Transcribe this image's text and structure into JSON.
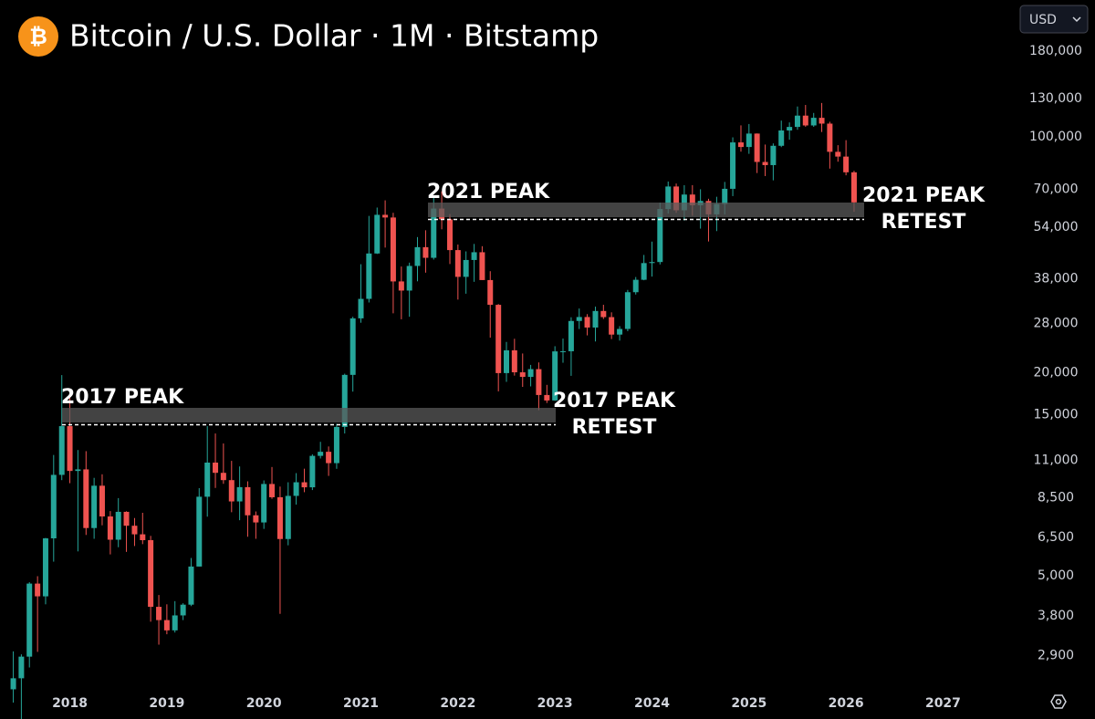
{
  "chart_data": {
    "type": "candlestick",
    "title": "Bitcoin / U.S. Dollar · 1M · Bitstamp",
    "icon": "₿",
    "currency": "USD",
    "log_scale": true,
    "up_color": "#26a69a",
    "down_color": "#ef5350",
    "annotations": [
      {
        "lines": [
          "2017 PEAK"
        ]
      },
      {
        "lines": [
          "2017 PEAK",
          "RETEST"
        ]
      },
      {
        "lines": [
          "2021 PEAK"
        ]
      },
      {
        "lines": [
          "2021 PEAK",
          "RETEST"
        ]
      }
    ],
    "xlim": [
      2017.28,
      2027.72
    ],
    "xticks": [
      2018,
      2019,
      2020,
      2021,
      2022,
      2023,
      2024,
      2025,
      2026,
      2027
    ],
    "ylim": [
      2350,
      255000
    ],
    "yticks": [
      {
        "value": 2900,
        "label": "2,900"
      },
      {
        "value": 3800,
        "label": "3,800"
      },
      {
        "value": 5000,
        "label": "5,000"
      },
      {
        "value": 6500,
        "label": "6,500"
      },
      {
        "value": 8500,
        "label": "8,500"
      },
      {
        "value": 11000,
        "label": "11,000"
      },
      {
        "value": 15000,
        "label": "15,000"
      },
      {
        "value": 20000,
        "label": "20,000"
      },
      {
        "value": 28000,
        "label": "28,000"
      },
      {
        "value": 38000,
        "label": "38,000"
      },
      {
        "value": 54000,
        "label": "54,000"
      },
      {
        "value": 70000,
        "label": "70,000"
      },
      {
        "value": 100000,
        "label": "100,000"
      },
      {
        "value": 130000,
        "label": "130,000"
      },
      {
        "value": 180000,
        "label": "180,000"
      }
    ],
    "x": [
      2017.417,
      2017.5,
      2017.583,
      2017.667,
      2017.75,
      2017.833,
      2017.917,
      2018,
      2018.083,
      2018.167,
      2018.25,
      2018.333,
      2018.417,
      2018.5,
      2018.583,
      2018.667,
      2018.75,
      2018.833,
      2018.917,
      2019,
      2019.083,
      2019.167,
      2019.25,
      2019.333,
      2019.417,
      2019.5,
      2019.583,
      2019.667,
      2019.75,
      2019.833,
      2019.917,
      2020,
      2020.083,
      2020.167,
      2020.25,
      2020.333,
      2020.417,
      2020.5,
      2020.583,
      2020.667,
      2020.75,
      2020.833,
      2020.917,
      2021,
      2021.083,
      2021.167,
      2021.25,
      2021.333,
      2021.417,
      2021.5,
      2021.583,
      2021.667,
      2021.75,
      2021.833,
      2021.917,
      2022,
      2022.083,
      2022.167,
      2022.25,
      2022.333,
      2022.417,
      2022.5,
      2022.583,
      2022.667,
      2022.75,
      2022.833,
      2022.917,
      2023,
      2023.083,
      2023.167,
      2023.25,
      2023.333,
      2023.417,
      2023.5,
      2023.583,
      2023.667,
      2023.75,
      2023.833,
      2023.917,
      2024,
      2024.083,
      2024.167,
      2024.25,
      2024.333,
      2024.417,
      2024.5,
      2024.583,
      2024.667,
      2024.75,
      2024.833,
      2024.917,
      2025,
      2025.083,
      2025.167,
      2025.25,
      2025.333,
      2025.417,
      2025.5,
      2025.583,
      2025.667,
      2025.75,
      2025.833,
      2025.917,
      2026,
      2026.083
    ],
    "open": [
      2300,
      2480,
      2875,
      4735,
      4340,
      6450,
      9950,
      13880,
      10220,
      10330,
      6920,
      9240,
      7490,
      6390,
      7730,
      7030,
      6630,
      6370,
      4040,
      3690,
      3440,
      3810,
      4100,
      5320,
      8570,
      10820,
      10090,
      9600,
      8300,
      9150,
      7550,
      7190,
      9350,
      8540,
      6420,
      8620,
      9460,
      9140,
      11330,
      11650,
      10780,
      13800,
      19700,
      28980,
      33110,
      45140,
      58790,
      57720,
      37300,
      35040,
      41460,
      47130,
      43830,
      61350,
      57000,
      46200,
      38480,
      43180,
      45530,
      37650,
      31790,
      19940,
      23300,
      20050,
      19430,
      20490,
      17170,
      16540,
      23130,
      23150,
      28470,
      29250,
      27220,
      30480,
      29230,
      25940,
      26960,
      34650,
      37720,
      42280,
      42580,
      61170,
      71330,
      60640,
      67520,
      62750,
      64620,
      58970,
      63300,
      70220,
      96400,
      93430,
      102400,
      84350,
      82550,
      94200,
      104600,
      107150,
      115760,
      108240,
      114050,
      109600,
      90400,
      87500,
      78600
    ],
    "high": [
      2980,
      2920,
      4780,
      4980,
      6470,
      11400,
      19670,
      17180,
      11790,
      11700,
      9750,
      9990,
      7770,
      8490,
      7760,
      7410,
      7680,
      6560,
      4380,
      4110,
      4200,
      4140,
      5640,
      9090,
      13880,
      13200,
      12330,
      10950,
      10540,
      9520,
      7750,
      9580,
      10500,
      9190,
      9460,
      10070,
      10380,
      11450,
      12470,
      12080,
      14100,
      19860,
      29300,
      41950,
      58350,
      61780,
      64900,
      59600,
      41300,
      42400,
      50500,
      52900,
      67000,
      69000,
      59100,
      47990,
      45800,
      48190,
      47450,
      40000,
      31960,
      24670,
      25210,
      22800,
      21090,
      21450,
      18400,
      23960,
      25250,
      29200,
      31000,
      29830,
      31400,
      31800,
      30200,
      27480,
      35200,
      38440,
      44700,
      48960,
      63900,
      73800,
      72800,
      71960,
      72000,
      70000,
      65600,
      66500,
      73600,
      99800,
      108300,
      109300,
      102500,
      95000,
      95750,
      111900,
      110500,
      123200,
      124500,
      117900,
      126200,
      111000,
      94600,
      97900,
      79400
    ],
    "low": [
      2100,
      1840,
      2670,
      2970,
      4110,
      5500,
      9600,
      9400,
      5900,
      6600,
      6430,
      7050,
      5780,
      6070,
      5880,
      6120,
      6200,
      3650,
      3120,
      3350,
      3390,
      3690,
      4060,
      5320,
      7480,
      9100,
      9360,
      7710,
      7300,
      6520,
      6430,
      6880,
      8450,
      3850,
      6150,
      8120,
      8840,
      8970,
      11130,
      9880,
      10370,
      13200,
      17570,
      28130,
      32300,
      45000,
      47000,
      30000,
      28800,
      29300,
      37330,
      39600,
      43300,
      53250,
      42000,
      32950,
      34300,
      37200,
      37650,
      25400,
      17600,
      18780,
      19600,
      18150,
      18210,
      15480,
      16260,
      16500,
      21400,
      19570,
      26950,
      25800,
      24750,
      28860,
      25160,
      24900,
      26550,
      34100,
      37600,
      38550,
      41890,
      59300,
      59600,
      56550,
      58400,
      53500,
      49000,
      52600,
      58900,
      66800,
      90500,
      89160,
      78200,
      76600,
      74400,
      93350,
      98200,
      105100,
      107300,
      107200,
      103500,
      80600,
      84500,
      77000,
      60000
    ],
    "close": [
      2480,
      2875,
      4735,
      4340,
      6450,
      9950,
      13880,
      10220,
      10330,
      6920,
      9240,
      7490,
      6390,
      7730,
      7030,
      6630,
      6370,
      4040,
      3690,
      3440,
      3810,
      4100,
      5320,
      8570,
      10820,
      10090,
      9600,
      8300,
      9150,
      7550,
      7190,
      9350,
      8540,
      6420,
      8620,
      9460,
      9140,
      11330,
      11650,
      10780,
      13800,
      19700,
      28980,
      33110,
      45140,
      58790,
      57720,
      37300,
      35040,
      41460,
      47130,
      43830,
      61350,
      57000,
      46200,
      38480,
      43180,
      45530,
      37650,
      31790,
      19940,
      23300,
      20050,
      19430,
      20490,
      17170,
      16540,
      23130,
      23150,
      28470,
      29250,
      27220,
      30480,
      29230,
      25940,
      26960,
      34650,
      37720,
      42280,
      42580,
      61170,
      71330,
      60640,
      67520,
      62750,
      64620,
      58970,
      63300,
      70220,
      96400,
      93430,
      102400,
      84350,
      82550,
      94200,
      104600,
      107150,
      115760,
      108240,
      114050,
      109600,
      90400,
      87500,
      78600,
      64000
    ]
  }
}
